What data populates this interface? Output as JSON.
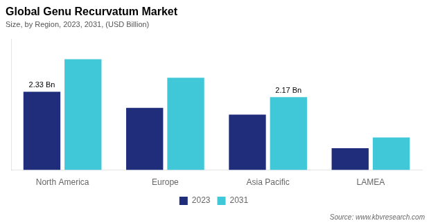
{
  "chart_data": {
    "type": "bar",
    "title": "Global Genu Recurvatum Market",
    "subtitle": "Size, by Region, 2023, 2031, (USD Billion)",
    "categories": [
      "North America",
      "Europe",
      "Asia Pacific",
      "LAMEA"
    ],
    "series": [
      {
        "name": "2023",
        "color": "#1f2d7b",
        "values": [
          2.33,
          1.85,
          1.65,
          0.65
        ]
      },
      {
        "name": "2031",
        "color": "#40c8d8",
        "values": [
          3.3,
          2.75,
          2.17,
          0.97
        ]
      }
    ],
    "ylim": [
      0,
      3.9
    ],
    "grid": false,
    "legend": "bottom",
    "tick_labels": "x",
    "annotations": [
      {
        "text": "2.33 Bn",
        "category": "North America",
        "series": "2023",
        "value": 2.33
      },
      {
        "text": "2.17 Bn",
        "category": "Asia Pacific",
        "series": "2031",
        "value": 2.17
      }
    ],
    "source": "Source: www.kbvresearch.com"
  }
}
